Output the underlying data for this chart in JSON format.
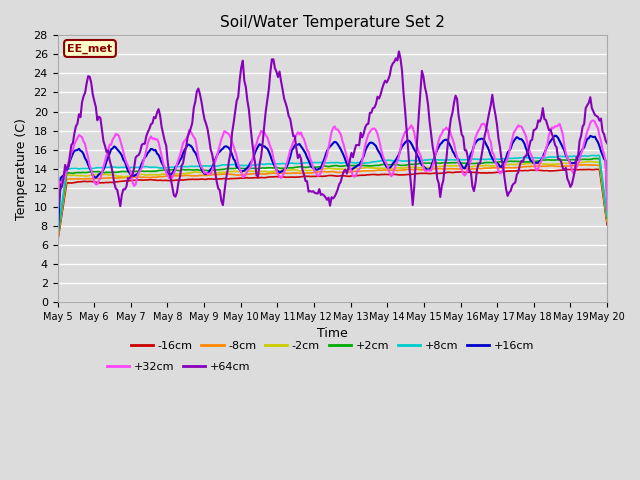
{
  "title": "Soil/Water Temperature Set 2",
  "xlabel": "Time",
  "ylabel": "Temperature (C)",
  "ylim": [
    0,
    28
  ],
  "yticks": [
    0,
    2,
    4,
    6,
    8,
    10,
    12,
    14,
    16,
    18,
    20,
    22,
    24,
    26,
    28
  ],
  "n_days": 15,
  "bg_color": "#dcdcdc",
  "annotation_text": "EE_met",
  "annotation_bg": "#ffffcc",
  "annotation_border": "#8b0000",
  "series": {
    "-16cm": {
      "color": "#cc0000",
      "lw": 1.2
    },
    "-8cm": {
      "color": "#ff8800",
      "lw": 1.2
    },
    "-2cm": {
      "color": "#cccc00",
      "lw": 1.2
    },
    "+2cm": {
      "color": "#00aa00",
      "lw": 1.2
    },
    "+8cm": {
      "color": "#00cccc",
      "lw": 1.2
    },
    "+16cm": {
      "color": "#0000cc",
      "lw": 1.5
    },
    "+32cm": {
      "color": "#ff44ff",
      "lw": 1.5
    },
    "+64cm": {
      "color": "#8800bb",
      "lw": 1.5
    }
  },
  "legend_row1": [
    "-16cm",
    "-8cm",
    "-2cm",
    "+2cm",
    "+8cm",
    "+16cm"
  ],
  "legend_row2": [
    "+32cm",
    "+64cm"
  ]
}
